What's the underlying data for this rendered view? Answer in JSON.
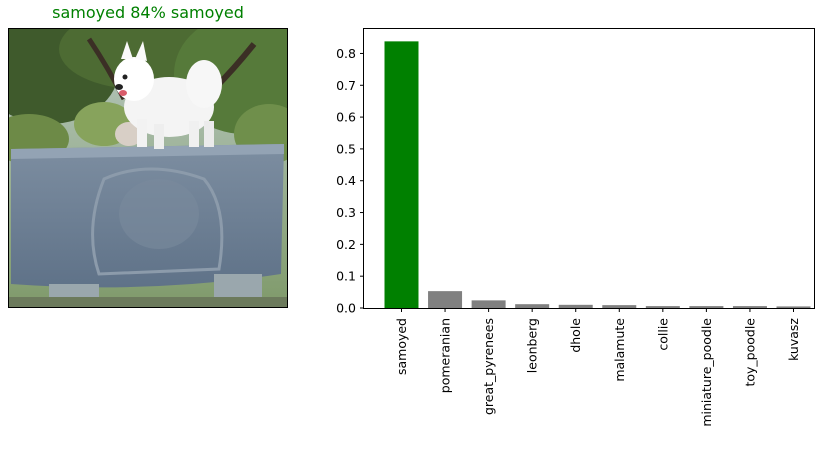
{
  "prediction_title": "samoyed 84% samoyed",
  "title_color": "#008000",
  "photo": {
    "subject": "white samoyed dog standing on a carved stone wall with trees behind"
  },
  "chart_data": {
    "type": "bar",
    "categories": [
      "samoyed",
      "pomeranian",
      "great_pyrenees",
      "leonberg",
      "dhole",
      "malamute",
      "collie",
      "miniature_poodle",
      "toy_poodle",
      "kuvasz"
    ],
    "values": [
      0.838,
      0.053,
      0.024,
      0.012,
      0.01,
      0.009,
      0.006,
      0.006,
      0.006,
      0.005
    ],
    "colors": [
      "#008000",
      "#808080",
      "#808080",
      "#808080",
      "#808080",
      "#808080",
      "#808080",
      "#808080",
      "#808080",
      "#808080"
    ],
    "yticks": [
      "0.0",
      "0.1",
      "0.2",
      "0.3",
      "0.4",
      "0.5",
      "0.6",
      "0.7",
      "0.8"
    ],
    "ylim": [
      0,
      0.88
    ],
    "grid": false,
    "title": "",
    "xlabel": "",
    "ylabel": ""
  }
}
